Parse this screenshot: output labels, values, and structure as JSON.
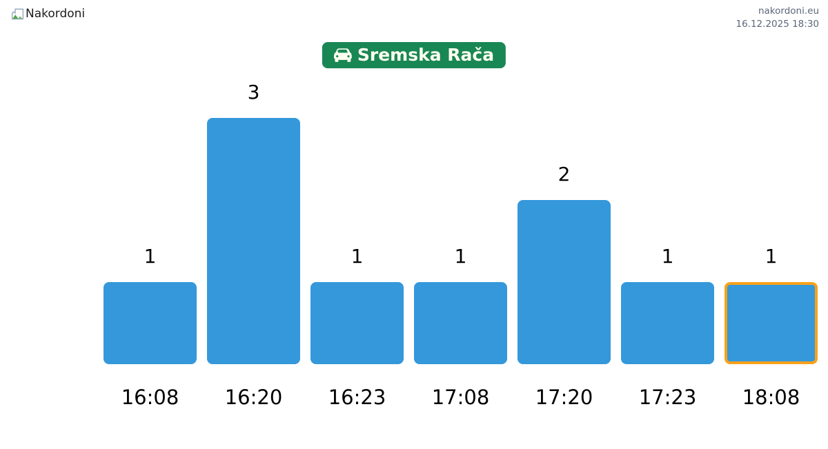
{
  "header": {
    "logo_alt_text": "Nakordoni",
    "site_name": "nakordoni.eu",
    "timestamp": "16.12.2025 18:30",
    "text_color": "#5b6779"
  },
  "title_badge": {
    "label": "Sremska Rača",
    "icon": "car-front-icon",
    "background_color": "#198754",
    "text_color": "#fffff0"
  },
  "chart_data": {
    "type": "bar",
    "title": "Sremska Rača",
    "categories": [
      "16:08",
      "16:20",
      "16:23",
      "17:08",
      "17:20",
      "17:23",
      "18:08"
    ],
    "values": [
      1,
      3,
      1,
      1,
      2,
      1,
      1
    ],
    "xlabel": "",
    "ylabel": "",
    "ylim": [
      0,
      3
    ],
    "grid": false,
    "legend": false,
    "value_labels_shown": true,
    "bar_color": "#3498db",
    "highlighted_index": 6,
    "highlight_border_color": "#f9a11c"
  }
}
